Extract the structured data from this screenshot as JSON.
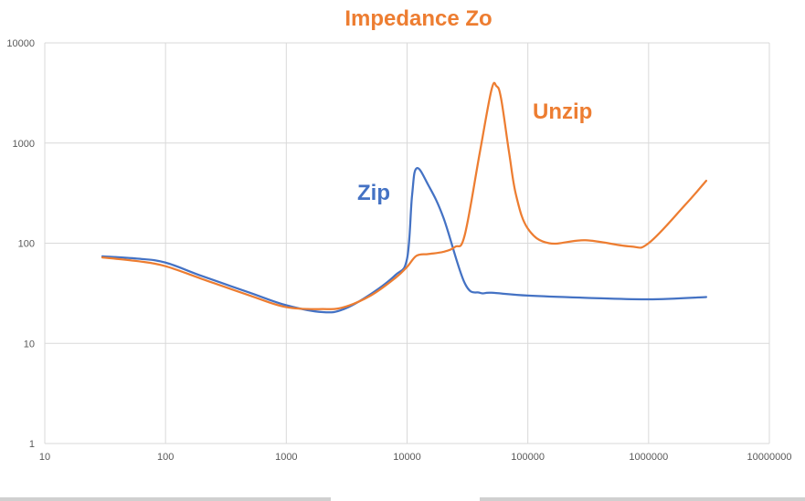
{
  "chart_data": {
    "type": "line",
    "title": "Impedance Zo",
    "xlabel": "",
    "ylabel": "",
    "x_scale": "log",
    "y_scale": "log",
    "xlim": [
      10,
      10000000
    ],
    "ylim": [
      1,
      10000
    ],
    "x_ticks": [
      "10",
      "100",
      "1000",
      "10000",
      "100000",
      "1000000",
      "10000000"
    ],
    "y_ticks": [
      "1",
      "10",
      "100",
      "1000",
      "10000"
    ],
    "grid": true,
    "legend": "none",
    "series": [
      {
        "name": "Zip",
        "color": "#4472C4",
        "x": [
          30,
          60,
          100,
          200,
          500,
          1000,
          2000,
          3000,
          5000,
          8000,
          10000,
          11000,
          12000,
          15000,
          20000,
          30000,
          40000,
          50000,
          100000,
          300000,
          1000000,
          3000000
        ],
        "y": [
          74,
          70,
          64,
          47,
          32,
          24,
          20.5,
          22,
          31,
          48,
          70,
          300,
          560,
          380,
          180,
          40,
          32,
          32,
          30,
          28.5,
          27.5,
          29
        ]
      },
      {
        "name": "Unzip",
        "color": "#ED7D31",
        "x": [
          30,
          60,
          100,
          200,
          500,
          1000,
          2000,
          3000,
          5000,
          8000,
          10000,
          12000,
          15000,
          20000,
          25000,
          30000,
          40000,
          50000,
          55000,
          60000,
          70000,
          80000,
          100000,
          150000,
          300000,
          700000,
          1000000,
          2000000,
          3000000
        ],
        "y": [
          72,
          66,
          59,
          44,
          30,
          23,
          22,
          23,
          30,
          45,
          58,
          75,
          78,
          82,
          92,
          120,
          800,
          3400,
          3700,
          2800,
          800,
          300,
          140,
          100,
          107,
          93,
          100,
          240,
          420
        ]
      }
    ]
  },
  "annotations": {
    "zip_label": "Zip",
    "unzip_label": "Unzip"
  }
}
